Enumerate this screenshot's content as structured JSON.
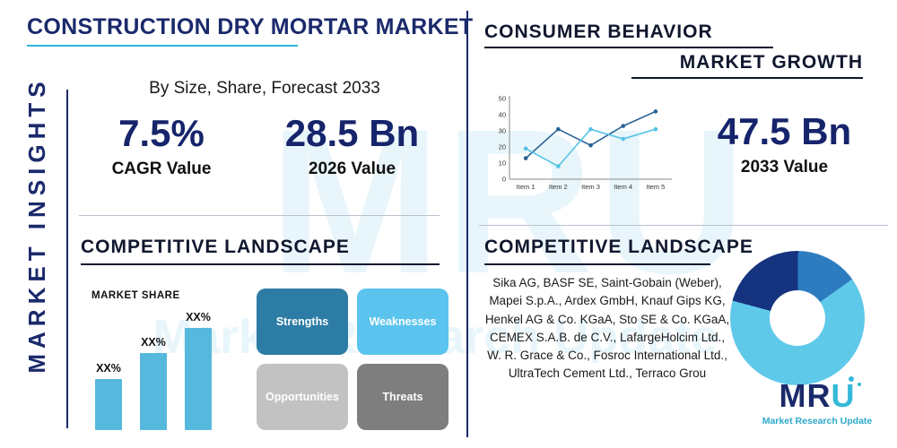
{
  "watermark": {
    "text": "MRU",
    "subtext": "Market Research Update"
  },
  "sidebar": {
    "label": "MARKET INSIGHTS"
  },
  "header": {
    "title": "CONSTRUCTION DRY MORTAR MARKET",
    "subtitle": "By Size, Share, Forecast 2033"
  },
  "sections": {
    "consumer_behavior": "CONSUMER BEHAVIOR",
    "market_growth": "MARKET GROWTH",
    "competitive_left": "COMPETITIVE LANDSCAPE",
    "competitive_right": "COMPETITIVE LANDSCAPE"
  },
  "stats": {
    "cagr": {
      "value": "7.5%",
      "label": "CAGR Value"
    },
    "y2026": {
      "value": "28.5 Bn",
      "label": "2026 Value"
    },
    "y2033": {
      "value": "47.5 Bn",
      "label": "2033 Value"
    }
  },
  "swot": {
    "strengths": {
      "label": "Strengths",
      "color": "#2d7ca5"
    },
    "weaknesses": {
      "label": "Weaknesses",
      "color": "#5bc4ee"
    },
    "opportunities": {
      "label": "Opportunities",
      "color": "#c2c2c2"
    },
    "threats": {
      "label": "Threats",
      "color": "#7e7e7e"
    }
  },
  "companies": "Sika AG, BASF SE, Saint-Gobain (Weber), Mapei S.p.A., Ardex GmbH, Knauf Gips KG, Henkel AG & Co. KGaA, Sto SE & Co. KGaA, CEMEX S.A.B. de C.V., LafargeHolcim Ltd., W. R. Grace & Co., Fosroc International Ltd., UltraTech Cement Ltd., Terraco Grou",
  "logo": {
    "mr": "MR",
    "u": "U",
    "tagline": "Market Research Update"
  },
  "colors": {
    "navy": "#1b2a6b",
    "teal": "#2fb4d9",
    "light_blue": "#56b8dc"
  },
  "chart_data": [
    {
      "name": "market-growth-line",
      "type": "line",
      "title": "MARKET GROWTH",
      "categories": [
        "Item 1",
        "Item 2",
        "Item 3",
        "Item 4",
        "Item 5"
      ],
      "series": [
        {
          "name": "series-dark-blue",
          "color": "#2a6396",
          "values": [
            13,
            31,
            21,
            33,
            42
          ]
        },
        {
          "name": "series-light-blue",
          "color": "#56c3e4",
          "values": [
            19,
            8,
            31,
            25,
            31
          ]
        }
      ],
      "ylim": [
        0,
        50
      ],
      "yticks": [
        0,
        10,
        20,
        30,
        40,
        50
      ],
      "grid": false,
      "legend": false
    },
    {
      "name": "market-share-bars",
      "type": "bar",
      "title": "MARKET SHARE",
      "categories": [
        "",
        "",
        ""
      ],
      "values": [
        30,
        45,
        60
      ],
      "bar_labels": [
        "XX%",
        "XX%",
        "XX%"
      ],
      "color": "#56b8dc",
      "ylim": [
        0,
        70
      ]
    },
    {
      "name": "competitive-donut",
      "type": "pie",
      "donut": true,
      "start_angle_deg": 285,
      "slices": [
        {
          "name": "segment-1",
          "value": 21,
          "color": "#16337f"
        },
        {
          "name": "segment-2",
          "value": 15,
          "color": "#2e7cc0"
        },
        {
          "name": "segment-3",
          "value": 64,
          "color": "#5fc9ea"
        }
      ]
    }
  ]
}
